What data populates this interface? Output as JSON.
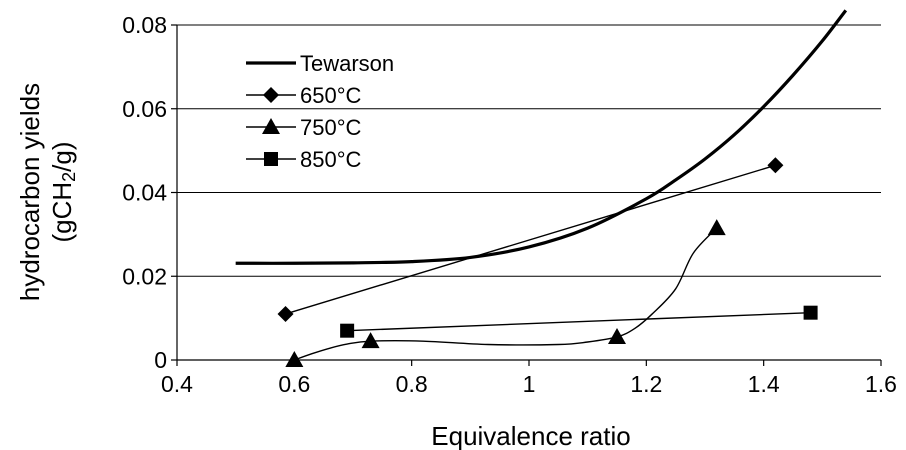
{
  "chart_data": {
    "type": "line",
    "xlabel": "Equivalence ratio",
    "ylabel_line1": "hydrocarbon yields",
    "ylabel_line2_pre": "(gCH",
    "ylabel_line2_sub": "2",
    "ylabel_line2_post": "/g)",
    "xlim": [
      0.4,
      1.6
    ],
    "ylim": [
      0,
      0.08
    ],
    "x_ticks": [
      "0.4",
      "0.6",
      "0.8",
      "1",
      "1.2",
      "1.4",
      "1.6"
    ],
    "y_ticks": [
      "0",
      "0.02",
      "0.04",
      "0.06",
      "0.08"
    ],
    "grid": "horizontal",
    "legend_position": "top-left",
    "series": [
      {
        "name": "Tewarson",
        "marker": "none",
        "style": "thick",
        "x": [
          0.5,
          0.6,
          0.7,
          0.8,
          0.9,
          1.0,
          1.1,
          1.2,
          1.25,
          1.3,
          1.35,
          1.4,
          1.45,
          1.5,
          1.54
        ],
        "y": [
          0.0231,
          0.0231,
          0.0232,
          0.0235,
          0.0245,
          0.027,
          0.0315,
          0.0385,
          0.043,
          0.048,
          0.0538,
          0.0605,
          0.068,
          0.0762,
          0.0835
        ]
      },
      {
        "name": "650°C",
        "marker": "diamond",
        "style": "thin",
        "x": [
          0.585,
          1.42
        ],
        "y": [
          0.011,
          0.0465
        ]
      },
      {
        "name": "750°C",
        "marker": "triangle",
        "style": "thin",
        "x": [
          0.6,
          0.73,
          1.15,
          1.32
        ],
        "y": [
          0.0,
          0.0045,
          0.0055,
          0.0315
        ],
        "curve_x": [
          0.6,
          0.63,
          0.66,
          0.69,
          0.73,
          0.82,
          0.93,
          1.05,
          1.1,
          1.15,
          1.18,
          1.21,
          1.25,
          1.28,
          1.32
        ],
        "curve_y": [
          0.0,
          0.0015,
          0.0028,
          0.0038,
          0.0045,
          0.0045,
          0.0037,
          0.0037,
          0.0043,
          0.0055,
          0.0075,
          0.011,
          0.017,
          0.0255,
          0.0315
        ]
      },
      {
        "name": "850°C",
        "marker": "square",
        "style": "thin",
        "x": [
          0.69,
          1.48
        ],
        "y": [
          0.007,
          0.0113
        ]
      }
    ]
  }
}
